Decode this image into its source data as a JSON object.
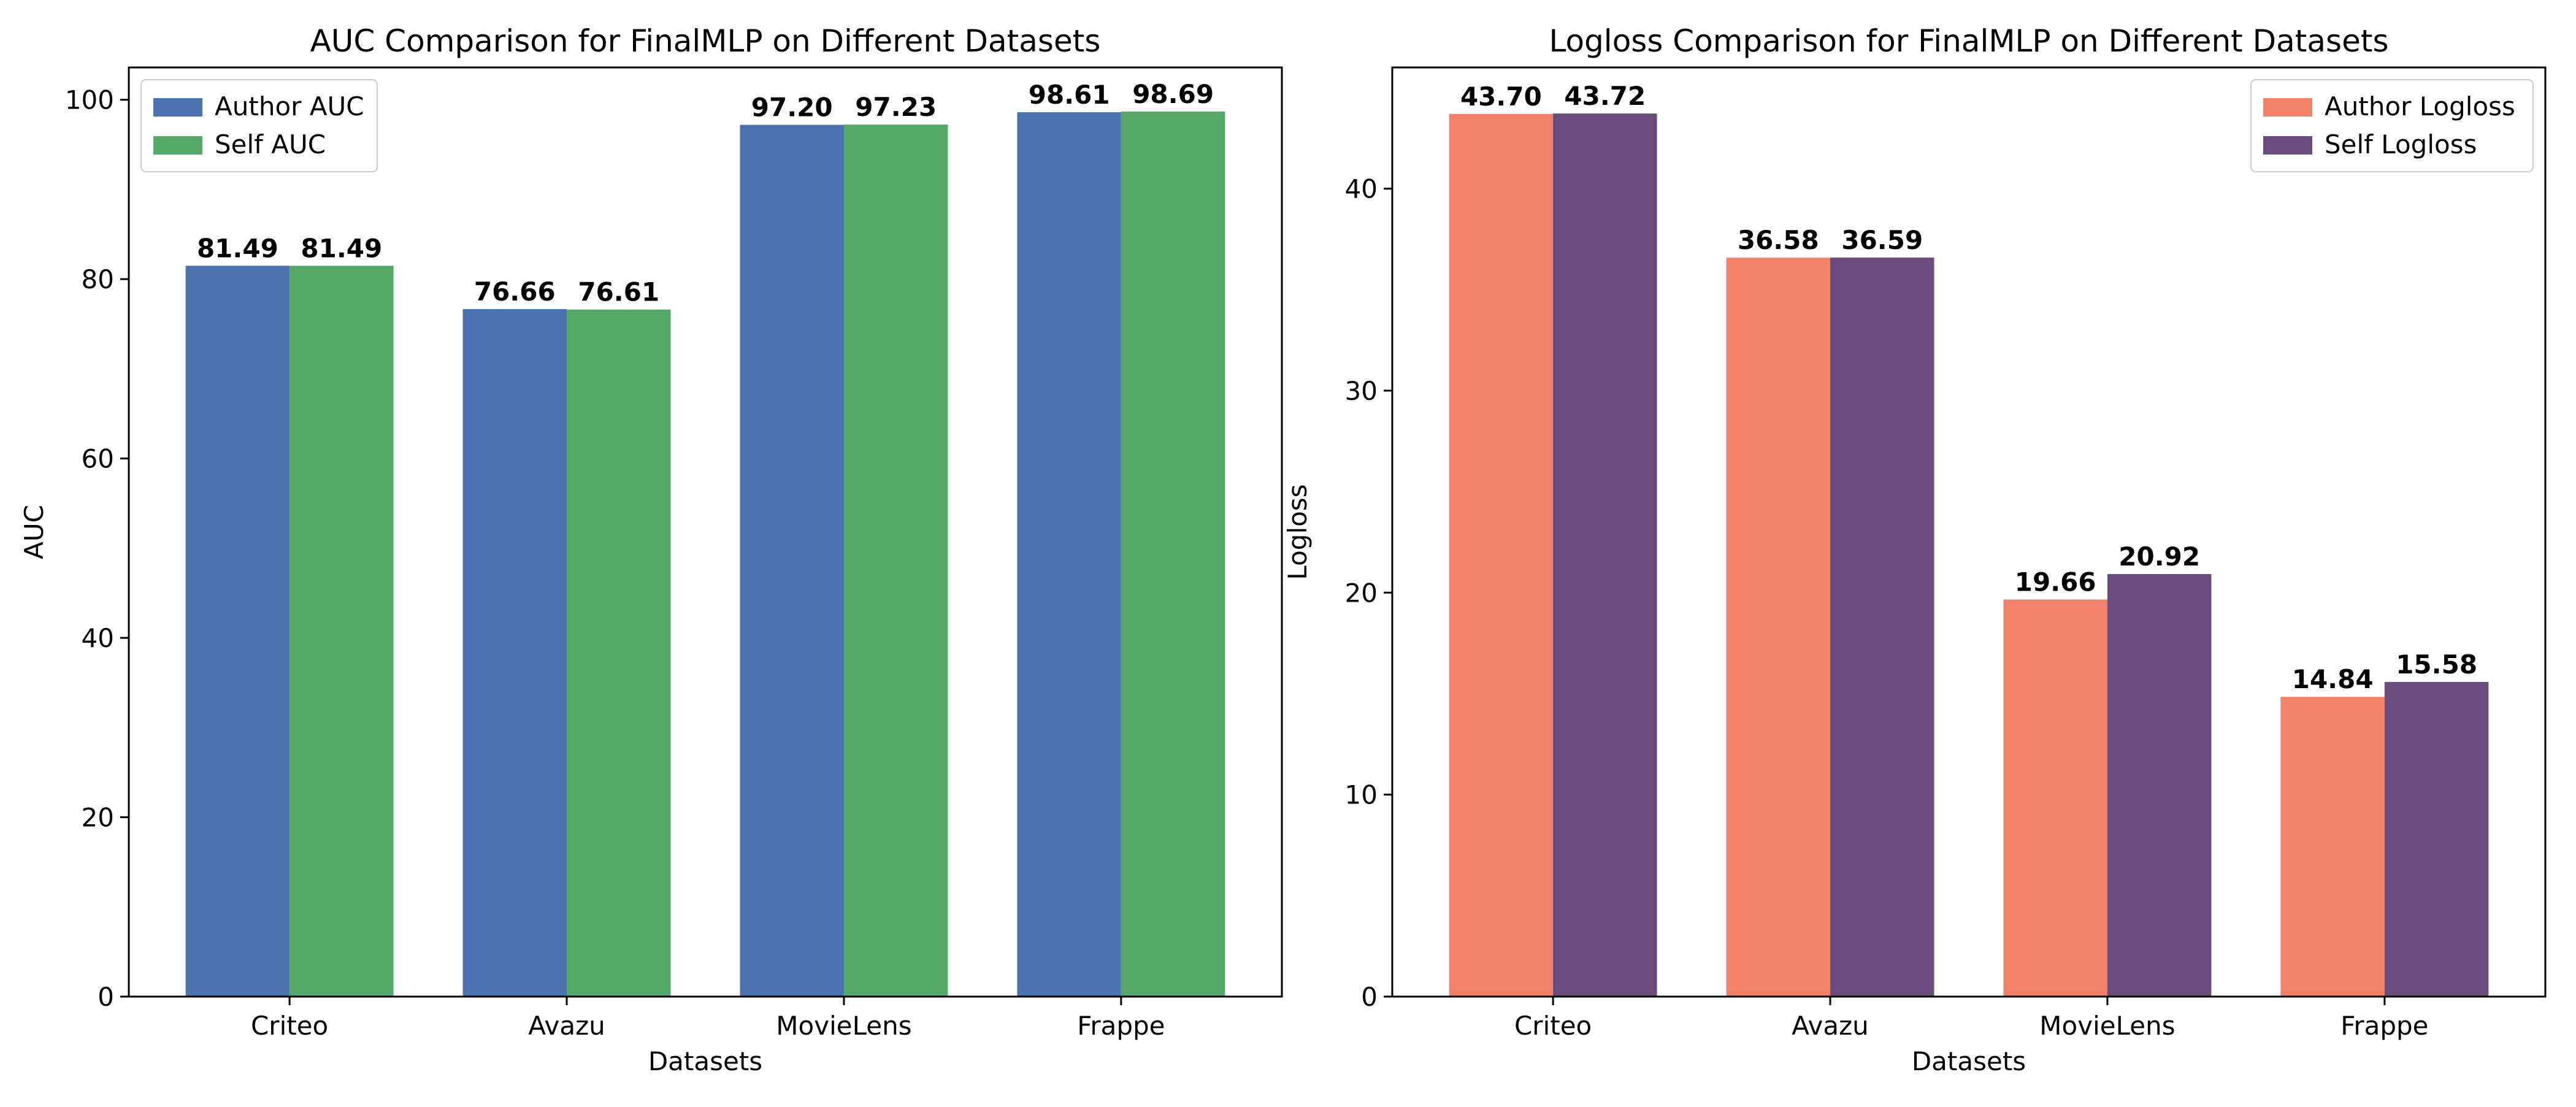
{
  "chart_data": [
    {
      "type": "bar",
      "title": "AUC Comparison for FinalMLP on Different Datasets",
      "xlabel": "Datasets",
      "ylabel": "AUC",
      "categories": [
        "Criteo",
        "Avazu",
        "MovieLens",
        "Frappe"
      ],
      "series": [
        {
          "name": "Author AUC",
          "color": "#4c72b0",
          "values": [
            81.49,
            76.66,
            97.2,
            98.61
          ],
          "labels": [
            "81.49",
            "76.66",
            "97.20",
            "98.61"
          ]
        },
        {
          "name": "Self AUC",
          "color": "#55a868",
          "values": [
            81.49,
            76.61,
            97.23,
            98.69
          ],
          "labels": [
            "81.49",
            "76.61",
            "97.23",
            "98.69"
          ]
        }
      ],
      "ylim": [
        0,
        103.6
      ],
      "yticks": [
        0,
        20,
        40,
        60,
        80,
        100
      ],
      "ytick_labels": [
        "0",
        "20",
        "40",
        "60",
        "80",
        "100"
      ],
      "legend": "top-left",
      "grid": false
    },
    {
      "type": "bar",
      "title": "Logloss Comparison for FinalMLP on Different Datasets",
      "xlabel": "Datasets",
      "ylabel": "Logloss",
      "categories": [
        "Criteo",
        "Avazu",
        "MovieLens",
        "Frappe"
      ],
      "series": [
        {
          "name": "Author Logloss",
          "color": "#f08068",
          "values": [
            43.7,
            36.58,
            19.66,
            14.84
          ],
          "labels": [
            "43.70",
            "36.58",
            "19.66",
            "14.84"
          ]
        },
        {
          "name": "Self Logloss",
          "color": "#6a4c7c",
          "values": [
            43.72,
            36.59,
            20.92,
            15.58
          ],
          "labels": [
            "43.72",
            "36.59",
            "20.92",
            "15.58"
          ]
        }
      ],
      "ylim": [
        0,
        46
      ],
      "yticks": [
        0,
        10,
        20,
        30,
        40
      ],
      "ytick_labels": [
        "0",
        "10",
        "20",
        "30",
        "40"
      ],
      "legend": "top-right",
      "grid": false
    }
  ]
}
